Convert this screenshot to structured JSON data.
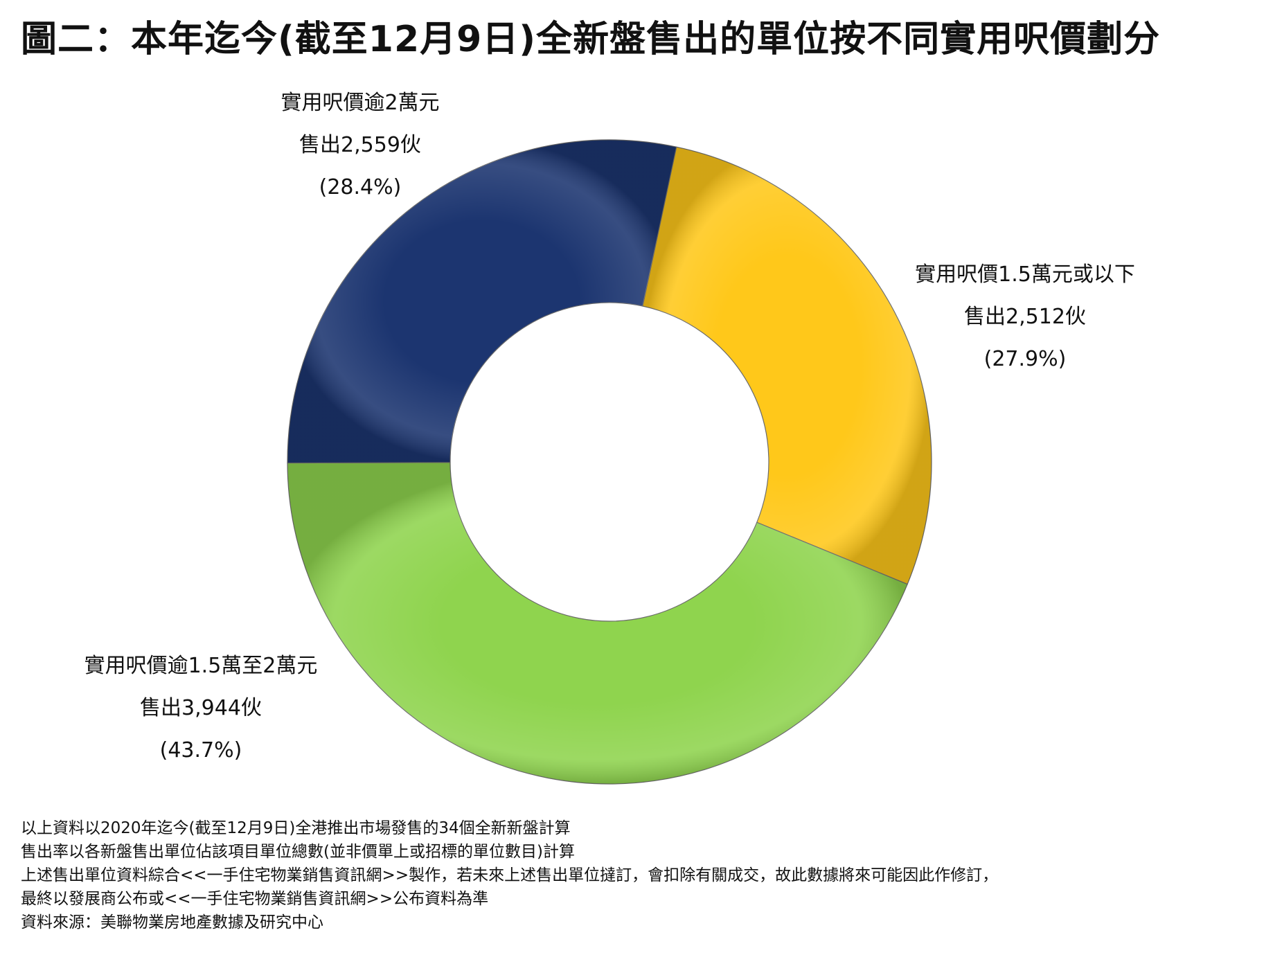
{
  "title": "圖二：本年迄今(截至12月9日)全新盤售出的單位按不同實用呎價劃分",
  "chart_data": {
    "type": "pie",
    "subtype": "donut",
    "series": [
      {
        "name": "實用呎價逾2萬元",
        "units": 2559,
        "percent": 28.4,
        "color": "#1c3570",
        "label_lines": [
          "實用呎價逾2萬元",
          "售出2,559伙",
          "(28.4%)"
        ]
      },
      {
        "name": "實用呎價1.5萬元或以下",
        "units": 2512,
        "percent": 27.9,
        "color": "#ffc81a",
        "label_lines": [
          "實用呎價1.5萬元或以下",
          "售出2,512伙",
          "(27.9%)"
        ]
      },
      {
        "name": "實用呎價逾1.5萬至2萬元",
        "units": 3944,
        "percent": 43.7,
        "color": "#8fd44e",
        "label_lines": [
          "實用呎價逾1.5萬至2萬元",
          "售出3,944伙",
          "(43.7%)"
        ]
      }
    ],
    "legend": "none"
  },
  "footnotes": [
    "以上資料以2020年迄今(截至12月9日)全港推出市場發售的34個全新新盤計算",
    "售出率以各新盤售出單位佔該項目單位總數(並非價單上或招標的單位數目)計算",
    "上述售出單位資料綜合<<一手住宅物業銷售資訊網>>製作，若未來上述售出單位撻訂，會扣除有關成交，故此數據將來可能因此作修訂，",
    "最終以發展商公布或<<一手住宅物業銷售資訊網>>公布資料為準",
    "資料來源：美聯物業房地產數據及研究中心"
  ]
}
